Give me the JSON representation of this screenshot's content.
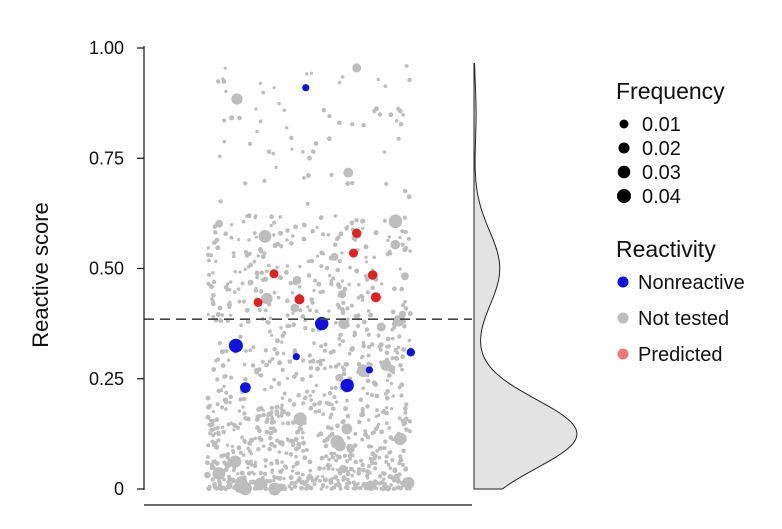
{
  "chart_data": {
    "type": "scatter",
    "ylabel": "Reactive score",
    "ylim": [
      0,
      1
    ],
    "yticks": [
      {
        "value": 0,
        "label": "0"
      },
      {
        "value": 0.25,
        "label": "0.25"
      },
      {
        "value": 0.5,
        "label": "0.50"
      },
      {
        "value": 0.75,
        "label": "0.75"
      },
      {
        "value": 1.0,
        "label": "1.00"
      }
    ],
    "threshold": 0.385,
    "legend_placement": "right",
    "size_legend": {
      "title": "Frequency",
      "entries": [
        {
          "label": "0.01",
          "value": 0.01
        },
        {
          "label": "0.02",
          "value": 0.02
        },
        {
          "label": "0.03",
          "value": 0.03
        },
        {
          "label": "0.04",
          "value": 0.04
        }
      ]
    },
    "color_legend": {
      "title": "Reactivity",
      "entries": [
        {
          "label": "Nonreactive",
          "color": "#1111dd"
        },
        {
          "label": "Not tested",
          "color": "#bdbdbd"
        },
        {
          "label": "Predicted",
          "color": "#ee7777"
        }
      ]
    },
    "series": [
      {
        "category": "Nonreactive",
        "color": "#1111dd",
        "points": [
          {
            "x": 0.49,
            "y": 0.91,
            "freq": 0.004
          },
          {
            "x": 0.27,
            "y": 0.325,
            "freq": 0.04
          },
          {
            "x": 0.3,
            "y": 0.23,
            "freq": 0.018
          },
          {
            "x": 0.54,
            "y": 0.375,
            "freq": 0.035
          },
          {
            "x": 0.62,
            "y": 0.235,
            "freq": 0.035
          },
          {
            "x": 0.46,
            "y": 0.3,
            "freq": 0.004
          },
          {
            "x": 0.69,
            "y": 0.27,
            "freq": 0.004
          },
          {
            "x": 0.82,
            "y": 0.31,
            "freq": 0.008
          }
        ]
      },
      {
        "category": "Predicted",
        "color": "#dd2222",
        "points": [
          {
            "x": 0.65,
            "y": 0.58,
            "freq": 0.012
          },
          {
            "x": 0.64,
            "y": 0.535,
            "freq": 0.01
          },
          {
            "x": 0.7,
            "y": 0.485,
            "freq": 0.012
          },
          {
            "x": 0.39,
            "y": 0.488,
            "freq": 0.01
          },
          {
            "x": 0.47,
            "y": 0.43,
            "freq": 0.014
          },
          {
            "x": 0.71,
            "y": 0.435,
            "freq": 0.014
          },
          {
            "x": 0.34,
            "y": 0.423,
            "freq": 0.01
          }
        ]
      }
    ]
  }
}
